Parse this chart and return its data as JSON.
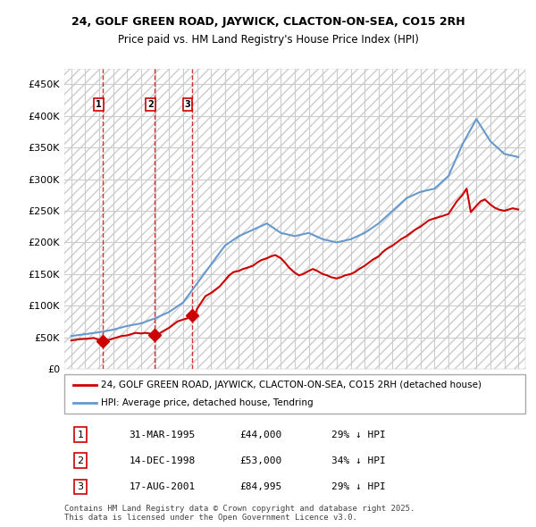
{
  "title1": "24, GOLF GREEN ROAD, JAYWICK, CLACTON-ON-SEA, CO15 2RH",
  "title2": "Price paid vs. HM Land Registry's House Price Index (HPI)",
  "ylabel": "",
  "ylim": [
    0,
    475000
  ],
  "yticks": [
    0,
    50000,
    100000,
    150000,
    200000,
    250000,
    300000,
    350000,
    400000,
    450000
  ],
  "ytick_labels": [
    "£0",
    "£50K",
    "£100K",
    "£150K",
    "£200K",
    "£250K",
    "£300K",
    "£350K",
    "£400K",
    "£450K"
  ],
  "background_color": "#ffffff",
  "hatch_color": "#e0e0e0",
  "grid_color": "#cccccc",
  "sale_dates": [
    "1995-03-31",
    "1998-12-14",
    "2001-08-17"
  ],
  "sale_prices": [
    44000,
    53000,
    84995
  ],
  "sale_labels": [
    "1",
    "2",
    "3"
  ],
  "sale_pct": [
    "29%",
    "34%",
    "29%"
  ],
  "sale_info": [
    [
      "1",
      "31-MAR-1995",
      "£44,000",
      "29% ↓ HPI"
    ],
    [
      "2",
      "14-DEC-1998",
      "£53,000",
      "34% ↓ HPI"
    ],
    [
      "3",
      "17-AUG-2001",
      "£84,995",
      "29% ↓ HPI"
    ]
  ],
  "red_line_color": "#cc0000",
  "blue_line_color": "#6699cc",
  "legend_entry1": "24, GOLF GREEN ROAD, JAYWICK, CLACTON-ON-SEA, CO15 2RH (detached house)",
  "legend_entry2": "HPI: Average price, detached house, Tendring",
  "footer": "Contains HM Land Registry data © Crown copyright and database right 2025.\nThis data is licensed under the Open Government Licence v3.0.",
  "hpi_years": [
    1993,
    1994,
    1995,
    1996,
    1997,
    1998,
    1999,
    2000,
    2001,
    2002,
    2003,
    2004,
    2005,
    2006,
    2007,
    2008,
    2009,
    2010,
    2011,
    2012,
    2013,
    2014,
    2015,
    2016,
    2017,
    2018,
    2019,
    2020,
    2021,
    2022,
    2023,
    2024,
    2025
  ],
  "hpi_values": [
    52000,
    55000,
    58000,
    62000,
    68000,
    72000,
    80000,
    90000,
    105000,
    135000,
    165000,
    195000,
    210000,
    220000,
    230000,
    215000,
    210000,
    215000,
    205000,
    200000,
    205000,
    215000,
    230000,
    250000,
    270000,
    280000,
    285000,
    305000,
    355000,
    395000,
    360000,
    340000,
    335000
  ],
  "red_years_data": [
    [
      1993.0,
      45000
    ],
    [
      1993.3,
      46000
    ],
    [
      1993.6,
      47000
    ],
    [
      1994.0,
      47500
    ],
    [
      1994.3,
      48000
    ],
    [
      1994.6,
      49000
    ],
    [
      1995.25,
      44000
    ],
    [
      1995.5,
      45000
    ],
    [
      1995.8,
      46500
    ],
    [
      1996.0,
      48000
    ],
    [
      1996.3,
      50000
    ],
    [
      1996.6,
      52000
    ],
    [
      1997.0,
      53000
    ],
    [
      1997.3,
      55000
    ],
    [
      1997.6,
      57000
    ],
    [
      1998.0,
      56000
    ],
    [
      1998.3,
      57000
    ],
    [
      1998.6,
      56000
    ],
    [
      1998.96,
      53000
    ],
    [
      1999.0,
      54000
    ],
    [
      1999.3,
      56000
    ],
    [
      1999.6,
      60000
    ],
    [
      2000.0,
      65000
    ],
    [
      2000.3,
      70000
    ],
    [
      2000.6,
      75000
    ],
    [
      2001.0,
      78000
    ],
    [
      2001.3,
      80000
    ],
    [
      2001.63,
      84995
    ],
    [
      2001.9,
      87000
    ],
    [
      2002.0,
      95000
    ],
    [
      2002.3,
      105000
    ],
    [
      2002.6,
      115000
    ],
    [
      2003.0,
      120000
    ],
    [
      2003.3,
      125000
    ],
    [
      2003.6,
      130000
    ],
    [
      2004.0,
      140000
    ],
    [
      2004.3,
      148000
    ],
    [
      2004.6,
      153000
    ],
    [
      2005.0,
      155000
    ],
    [
      2005.3,
      158000
    ],
    [
      2005.6,
      160000
    ],
    [
      2006.0,
      163000
    ],
    [
      2006.3,
      168000
    ],
    [
      2006.6,
      172000
    ],
    [
      2007.0,
      175000
    ],
    [
      2007.3,
      178000
    ],
    [
      2007.6,
      180000
    ],
    [
      2008.0,
      175000
    ],
    [
      2008.3,
      168000
    ],
    [
      2008.6,
      160000
    ],
    [
      2009.0,
      152000
    ],
    [
      2009.3,
      148000
    ],
    [
      2009.6,
      150000
    ],
    [
      2010.0,
      155000
    ],
    [
      2010.3,
      158000
    ],
    [
      2010.6,
      155000
    ],
    [
      2011.0,
      150000
    ],
    [
      2011.3,
      148000
    ],
    [
      2011.6,
      145000
    ],
    [
      2012.0,
      143000
    ],
    [
      2012.3,
      145000
    ],
    [
      2012.6,
      148000
    ],
    [
      2013.0,
      150000
    ],
    [
      2013.3,
      153000
    ],
    [
      2013.6,
      158000
    ],
    [
      2014.0,
      163000
    ],
    [
      2014.3,
      168000
    ],
    [
      2014.6,
      173000
    ],
    [
      2015.0,
      178000
    ],
    [
      2015.3,
      185000
    ],
    [
      2015.6,
      190000
    ],
    [
      2016.0,
      195000
    ],
    [
      2016.3,
      200000
    ],
    [
      2016.6,
      205000
    ],
    [
      2017.0,
      210000
    ],
    [
      2017.3,
      215000
    ],
    [
      2017.6,
      220000
    ],
    [
      2018.0,
      225000
    ],
    [
      2018.3,
      230000
    ],
    [
      2018.6,
      235000
    ],
    [
      2019.0,
      238000
    ],
    [
      2019.3,
      240000
    ],
    [
      2019.6,
      242000
    ],
    [
      2020.0,
      245000
    ],
    [
      2020.3,
      255000
    ],
    [
      2020.6,
      265000
    ],
    [
      2021.0,
      275000
    ],
    [
      2021.3,
      285000
    ],
    [
      2021.6,
      248000
    ],
    [
      2022.0,
      258000
    ],
    [
      2022.3,
      265000
    ],
    [
      2022.6,
      268000
    ],
    [
      2023.0,
      260000
    ],
    [
      2023.3,
      255000
    ],
    [
      2023.6,
      252000
    ],
    [
      2024.0,
      250000
    ],
    [
      2024.3,
      252000
    ],
    [
      2024.6,
      254000
    ],
    [
      2025.0,
      252000
    ]
  ]
}
